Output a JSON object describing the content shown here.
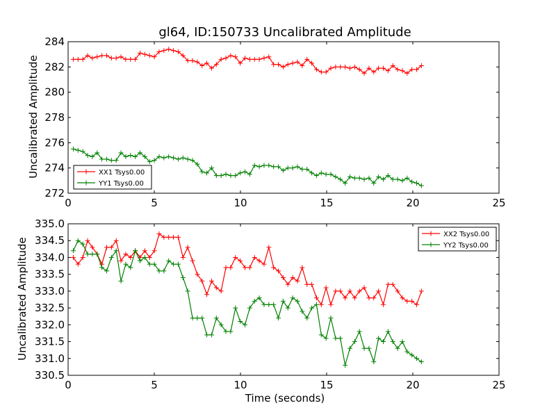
{
  "chart_data": [
    {
      "type": "line",
      "title": "gl64, ID:150733 Uncalibrated Amplitude",
      "ylabel": "Uncalibrated Amplitude",
      "xlabel": "",
      "xlim": [
        0,
        25
      ],
      "ylim": [
        272,
        284
      ],
      "xticks": [
        "0",
        "5",
        "10",
        "15",
        "20",
        "25"
      ],
      "yticks": [
        "272",
        "274",
        "276",
        "278",
        "280",
        "282",
        "284"
      ],
      "legend": "lower-left",
      "series": [
        {
          "name": "XX1 Tsys0.00",
          "color": "#ff0000",
          "values": [
            282.6,
            282.6,
            282.6,
            282.9,
            282.7,
            282.8,
            282.9,
            282.9,
            282.7,
            282.7,
            282.8,
            282.6,
            282.6,
            282.6,
            283.1,
            283.0,
            282.9,
            282.8,
            283.2,
            283.3,
            283.4,
            283.3,
            283.2,
            282.9,
            282.5,
            282.5,
            282.4,
            282.1,
            282.3,
            281.9,
            282.2,
            282.6,
            282.7,
            282.9,
            282.8,
            282.3,
            282.7,
            282.6,
            282.6,
            282.6,
            282.7,
            282.8,
            282.2,
            282.2,
            282.0,
            282.2,
            282.3,
            282.4,
            282.1,
            282.6,
            282.3,
            281.8,
            281.6,
            281.6,
            281.9,
            282.0,
            282.0,
            282.0,
            281.9,
            282.0,
            281.8,
            281.5,
            281.9,
            281.6,
            281.9,
            281.9,
            281.7,
            282.1,
            281.8,
            281.7,
            281.5,
            281.8,
            281.8,
            282.1
          ]
        },
        {
          "name": "YY1 Tsys0.00",
          "color": "#008000",
          "values": [
            275.5,
            275.4,
            275.3,
            275.0,
            274.9,
            275.2,
            274.7,
            274.7,
            274.6,
            274.6,
            275.2,
            274.9,
            275.0,
            274.9,
            275.2,
            274.9,
            274.5,
            274.6,
            274.9,
            274.8,
            274.9,
            274.8,
            274.7,
            274.8,
            274.7,
            274.6,
            274.3,
            273.7,
            273.6,
            274.0,
            273.4,
            273.4,
            273.5,
            273.4,
            273.4,
            273.6,
            273.7,
            273.5,
            274.2,
            274.1,
            274.2,
            274.2,
            274.1,
            274.1,
            273.8,
            274.0,
            274.0,
            274.1,
            273.9,
            273.9,
            273.6,
            273.4,
            273.6,
            273.5,
            273.5,
            273.3,
            273.1,
            272.8,
            273.3,
            273.2,
            273.2,
            273.1,
            273.2,
            272.8,
            273.3,
            273.1,
            273.4,
            273.1,
            273.1,
            273.0,
            273.2,
            272.9,
            272.8,
            272.6
          ]
        }
      ]
    },
    {
      "type": "line",
      "title": "",
      "ylabel": "Uncalibrated Amplitude",
      "xlabel": "Time (seconds)",
      "xlim": [
        0,
        25
      ],
      "ylim": [
        330.5,
        335.0
      ],
      "xticks": [
        "0",
        "5",
        "10",
        "15",
        "20",
        "25"
      ],
      "yticks": [
        "330.5",
        "331.0",
        "331.5",
        "332.0",
        "332.5",
        "333.0",
        "333.5",
        "334.0",
        "334.5",
        "335.0"
      ],
      "legend": "top-right",
      "series": [
        {
          "name": "XX2 Tsys0.00",
          "color": "#ff0000",
          "values": [
            334.0,
            333.8,
            334.0,
            334.5,
            334.3,
            334.1,
            333.8,
            334.3,
            334.3,
            334.5,
            333.9,
            334.1,
            334.0,
            334.2,
            334.0,
            334.2,
            334.0,
            334.2,
            334.7,
            334.6,
            334.6,
            334.6,
            334.6,
            334.0,
            334.3,
            333.9,
            333.5,
            333.3,
            332.9,
            333.3,
            333.1,
            333.0,
            333.7,
            333.7,
            334.0,
            333.9,
            333.7,
            333.7,
            334.0,
            333.9,
            333.8,
            334.3,
            333.7,
            333.6,
            333.4,
            333.2,
            333.4,
            333.3,
            333.7,
            333.2,
            333.2,
            332.8,
            332.6,
            333.1,
            332.6,
            333.0,
            333.0,
            332.8,
            333.0,
            332.8,
            333.0,
            333.1,
            332.8,
            332.8,
            333.0,
            332.6,
            333.2,
            333.2,
            333.0,
            332.8,
            332.7,
            332.7,
            332.6,
            333.0
          ]
        },
        {
          "name": "YY2 Tsys0.00",
          "color": "#008000",
          "values": [
            334.2,
            334.5,
            334.4,
            334.1,
            334.1,
            334.1,
            333.7,
            333.6,
            334.0,
            334.2,
            333.3,
            333.8,
            333.7,
            334.2,
            333.9,
            334.0,
            333.8,
            333.8,
            333.6,
            333.6,
            333.9,
            333.8,
            333.8,
            333.4,
            333.0,
            332.2,
            332.2,
            332.2,
            331.7,
            331.7,
            332.2,
            332.0,
            331.8,
            331.8,
            332.5,
            332.1,
            332.0,
            332.5,
            332.7,
            332.8,
            332.6,
            332.6,
            332.6,
            332.2,
            332.7,
            332.5,
            332.8,
            332.7,
            332.4,
            332.2,
            332.5,
            332.6,
            331.7,
            331.6,
            332.2,
            331.6,
            331.6,
            330.8,
            331.3,
            331.5,
            331.8,
            331.3,
            331.3,
            330.9,
            331.6,
            331.5,
            331.8,
            331.5,
            331.3,
            331.5,
            331.2,
            331.1,
            331.0,
            330.9
          ]
        }
      ]
    }
  ]
}
